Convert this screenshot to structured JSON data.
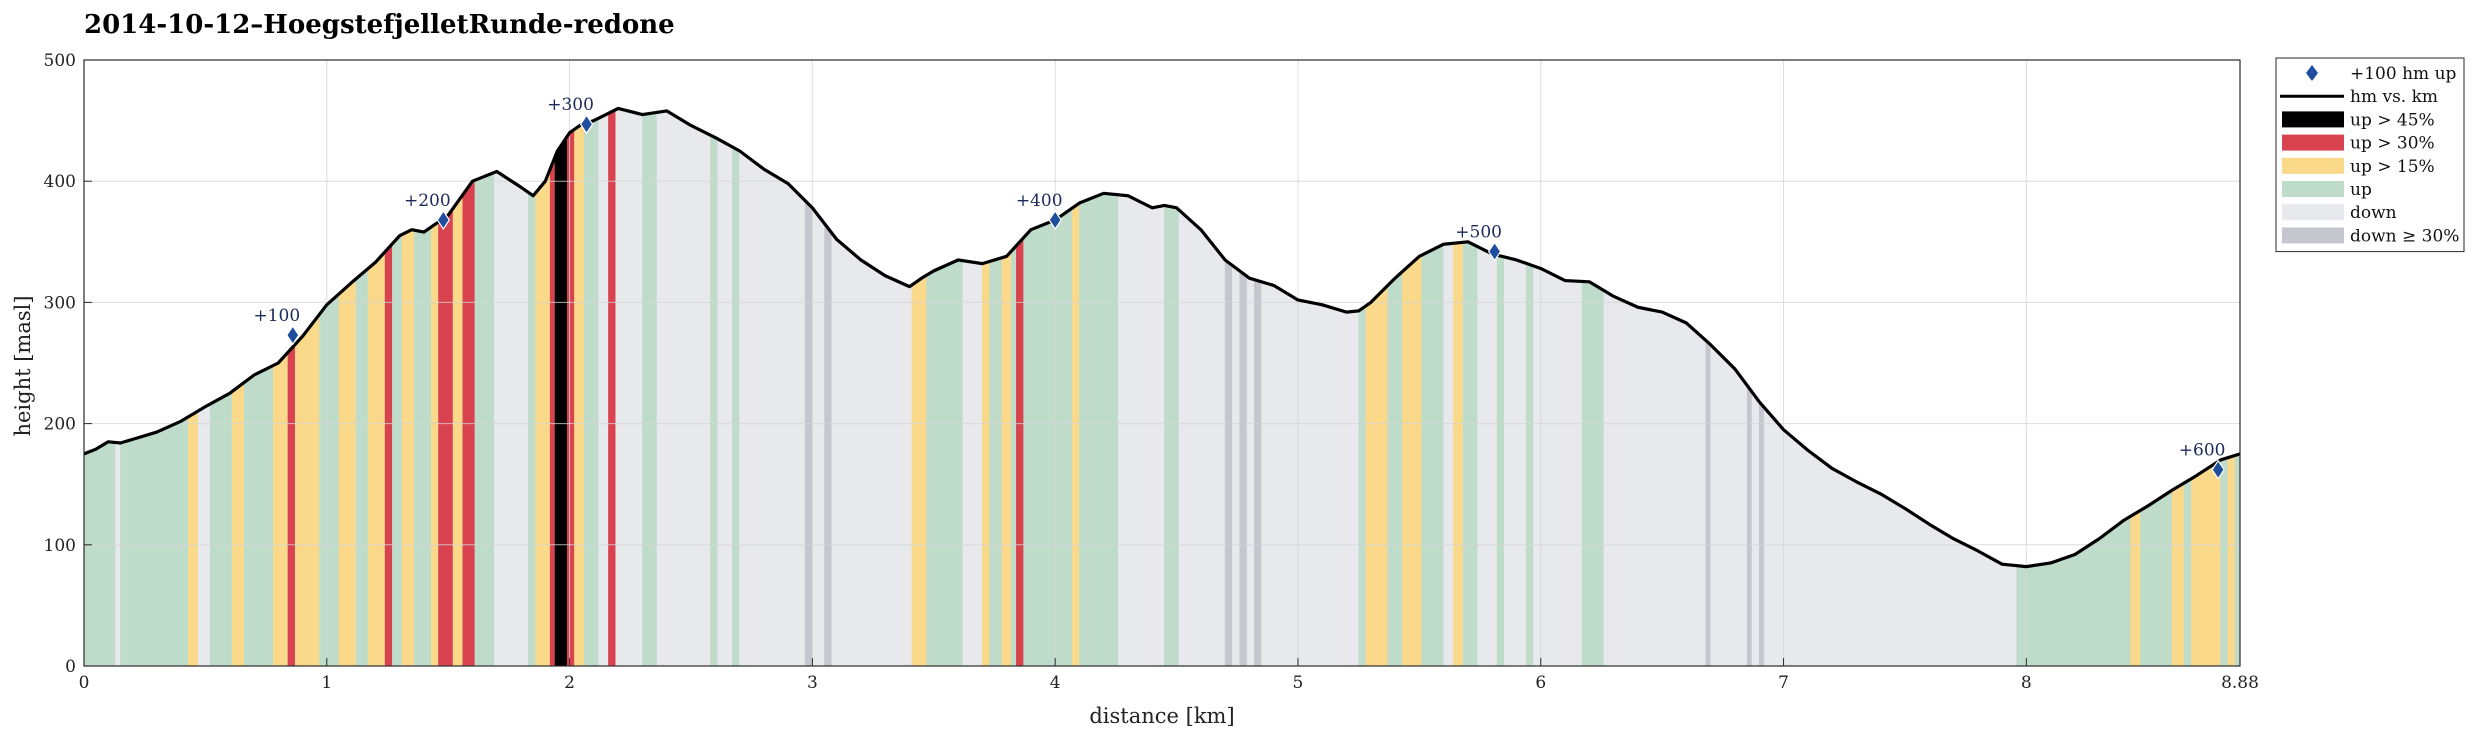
{
  "chart_data": {
    "type": "area",
    "title": "2014-10-12–HoegstefjelletRunde-redone",
    "xlabel": "distance [km]",
    "ylabel": "height [masl]",
    "xlim": [
      0,
      8.88
    ],
    "ylim": [
      0,
      500
    ],
    "grid": true,
    "legend_position": "outside-top-right",
    "x_ticks": [
      0,
      1,
      2,
      3,
      4,
      5,
      6,
      7,
      8,
      8.88
    ],
    "x_tick_labels": [
      "0",
      "1",
      "2",
      "3",
      "4",
      "5",
      "6",
      "7",
      "8",
      "8.88"
    ],
    "y_ticks": [
      0,
      100,
      200,
      300,
      400,
      500
    ],
    "y_tick_labels": [
      "0",
      "100",
      "200",
      "300",
      "400",
      "500"
    ],
    "profile": {
      "name": "hm vs. km",
      "color": "#000000",
      "x": [
        0.0,
        0.05,
        0.1,
        0.15,
        0.2,
        0.3,
        0.4,
        0.5,
        0.6,
        0.7,
        0.8,
        0.9,
        1.0,
        1.1,
        1.2,
        1.3,
        1.35,
        1.4,
        1.5,
        1.6,
        1.7,
        1.8,
        1.85,
        1.9,
        1.95,
        2.0,
        2.05,
        2.1,
        2.15,
        2.2,
        2.3,
        2.4,
        2.5,
        2.6,
        2.7,
        2.8,
        2.9,
        3.0,
        3.1,
        3.2,
        3.3,
        3.4,
        3.45,
        3.5,
        3.6,
        3.7,
        3.8,
        3.9,
        4.0,
        4.1,
        4.2,
        4.3,
        4.4,
        4.45,
        4.5,
        4.6,
        4.7,
        4.8,
        4.9,
        5.0,
        5.1,
        5.2,
        5.25,
        5.3,
        5.4,
        5.5,
        5.6,
        5.7,
        5.8,
        5.9,
        6.0,
        6.1,
        6.2,
        6.3,
        6.4,
        6.5,
        6.6,
        6.7,
        6.8,
        6.9,
        7.0,
        7.1,
        7.2,
        7.3,
        7.4,
        7.5,
        7.6,
        7.7,
        7.8,
        7.9,
        8.0,
        8.1,
        8.2,
        8.3,
        8.4,
        8.5,
        8.6,
        8.7,
        8.8,
        8.88
      ],
      "y": [
        175,
        179,
        185,
        184,
        187,
        193,
        202,
        214,
        225,
        240,
        250,
        272,
        298,
        316,
        333,
        355,
        360,
        358,
        372,
        400,
        408,
        395,
        388,
        400,
        425,
        440,
        447,
        450,
        455,
        460,
        455,
        458,
        446,
        436,
        425,
        410,
        398,
        378,
        352,
        335,
        322,
        313,
        320,
        326,
        335,
        332,
        338,
        360,
        368,
        382,
        390,
        388,
        378,
        380,
        378,
        360,
        335,
        320,
        314,
        302,
        298,
        292,
        293,
        300,
        320,
        338,
        348,
        350,
        340,
        335,
        328,
        318,
        317,
        305,
        296,
        292,
        283,
        265,
        245,
        218,
        195,
        178,
        163,
        152,
        142,
        130,
        117,
        105,
        95,
        84,
        82,
        85,
        92,
        105,
        120,
        132,
        145,
        157,
        170,
        175
      ]
    },
    "markers": {
      "name": "+100 hm up",
      "color": "#1f4e9e",
      "points": [
        {
          "x": 0.86,
          "y": 273,
          "label": "+100"
        },
        {
          "x": 1.48,
          "y": 368,
          "label": "+200"
        },
        {
          "x": 2.07,
          "y": 447,
          "label": "+300"
        },
        {
          "x": 4.0,
          "y": 368,
          "label": "+400"
        },
        {
          "x": 5.81,
          "y": 342,
          "label": "+500"
        },
        {
          "x": 8.79,
          "y": 162,
          "label": "+600"
        }
      ]
    },
    "categories": [
      {
        "key": "up45",
        "label": "up > 45%",
        "color": "#000000"
      },
      {
        "key": "up30",
        "label": "up > 30%",
        "color": "#d9434f"
      },
      {
        "key": "up15",
        "label": "up > 15%",
        "color": "#fad98a"
      },
      {
        "key": "up",
        "label": "up",
        "color": "#bfdccb"
      },
      {
        "key": "down",
        "label": "down",
        "color": "#e8e9ed"
      },
      {
        "key": "down30",
        "label": "down ≥ 30%",
        "color": "#c6c7ce"
      }
    ],
    "default_up_color": "#bfdccb",
    "default_down_color": "#e8e9ed",
    "segments": [
      {
        "x0": 0.0,
        "x1": 0.13,
        "c": "up"
      },
      {
        "x0": 0.13,
        "x1": 0.15,
        "c": "down"
      },
      {
        "x0": 0.15,
        "x1": 0.43,
        "c": "up"
      },
      {
        "x0": 0.43,
        "x1": 0.47,
        "c": "up15"
      },
      {
        "x0": 0.47,
        "x1": 0.52,
        "c": "down"
      },
      {
        "x0": 0.52,
        "x1": 0.61,
        "c": "up"
      },
      {
        "x0": 0.61,
        "x1": 0.66,
        "c": "up15"
      },
      {
        "x0": 0.66,
        "x1": 0.78,
        "c": "up"
      },
      {
        "x0": 0.78,
        "x1": 0.84,
        "c": "up15"
      },
      {
        "x0": 0.84,
        "x1": 0.87,
        "c": "up30"
      },
      {
        "x0": 0.87,
        "x1": 0.97,
        "c": "up15"
      },
      {
        "x0": 0.97,
        "x1": 1.05,
        "c": "up"
      },
      {
        "x0": 1.05,
        "x1": 1.12,
        "c": "up15"
      },
      {
        "x0": 1.12,
        "x1": 1.17,
        "c": "up"
      },
      {
        "x0": 1.17,
        "x1": 1.24,
        "c": "up15"
      },
      {
        "x0": 1.24,
        "x1": 1.27,
        "c": "up30"
      },
      {
        "x0": 1.27,
        "x1": 1.31,
        "c": "up"
      },
      {
        "x0": 1.31,
        "x1": 1.36,
        "c": "up15"
      },
      {
        "x0": 1.36,
        "x1": 1.43,
        "c": "up"
      },
      {
        "x0": 1.43,
        "x1": 1.46,
        "c": "up15"
      },
      {
        "x0": 1.46,
        "x1": 1.52,
        "c": "up30"
      },
      {
        "x0": 1.52,
        "x1": 1.56,
        "c": "up15"
      },
      {
        "x0": 1.56,
        "x1": 1.61,
        "c": "up30"
      },
      {
        "x0": 1.61,
        "x1": 1.69,
        "c": "up"
      },
      {
        "x0": 1.69,
        "x1": 1.83,
        "c": "down"
      },
      {
        "x0": 1.83,
        "x1": 1.86,
        "c": "up"
      },
      {
        "x0": 1.86,
        "x1": 1.92,
        "c": "up15"
      },
      {
        "x0": 1.92,
        "x1": 1.94,
        "c": "up30"
      },
      {
        "x0": 1.94,
        "x1": 1.99,
        "c": "up45"
      },
      {
        "x0": 1.99,
        "x1": 2.02,
        "c": "up30"
      },
      {
        "x0": 2.02,
        "x1": 2.06,
        "c": "up15"
      },
      {
        "x0": 2.06,
        "x1": 2.12,
        "c": "up"
      },
      {
        "x0": 2.12,
        "x1": 2.16,
        "c": "down"
      },
      {
        "x0": 2.16,
        "x1": 2.19,
        "c": "up30"
      },
      {
        "x0": 2.19,
        "x1": 2.3,
        "c": "down"
      },
      {
        "x0": 2.3,
        "x1": 2.36,
        "c": "up"
      },
      {
        "x0": 2.36,
        "x1": 2.58,
        "c": "down"
      },
      {
        "x0": 2.58,
        "x1": 2.61,
        "c": "up"
      },
      {
        "x0": 2.61,
        "x1": 2.67,
        "c": "down"
      },
      {
        "x0": 2.67,
        "x1": 2.7,
        "c": "up"
      },
      {
        "x0": 2.7,
        "x1": 2.97,
        "c": "down"
      },
      {
        "x0": 2.97,
        "x1": 3.0,
        "c": "down30"
      },
      {
        "x0": 3.0,
        "x1": 3.05,
        "c": "down"
      },
      {
        "x0": 3.05,
        "x1": 3.08,
        "c": "down30"
      },
      {
        "x0": 3.08,
        "x1": 3.41,
        "c": "down"
      },
      {
        "x0": 3.41,
        "x1": 3.47,
        "c": "up15"
      },
      {
        "x0": 3.47,
        "x1": 3.62,
        "c": "up"
      },
      {
        "x0": 3.62,
        "x1": 3.7,
        "c": "down"
      },
      {
        "x0": 3.7,
        "x1": 3.73,
        "c": "up15"
      },
      {
        "x0": 3.73,
        "x1": 3.78,
        "c": "up"
      },
      {
        "x0": 3.78,
        "x1": 3.82,
        "c": "up15"
      },
      {
        "x0": 3.82,
        "x1": 3.84,
        "c": "up"
      },
      {
        "x0": 3.84,
        "x1": 3.87,
        "c": "up30"
      },
      {
        "x0": 3.87,
        "x1": 4.07,
        "c": "up"
      },
      {
        "x0": 4.07,
        "x1": 4.1,
        "c": "up15"
      },
      {
        "x0": 4.1,
        "x1": 4.26,
        "c": "up"
      },
      {
        "x0": 4.26,
        "x1": 4.45,
        "c": "down"
      },
      {
        "x0": 4.45,
        "x1": 4.51,
        "c": "up"
      },
      {
        "x0": 4.51,
        "x1": 4.7,
        "c": "down"
      },
      {
        "x0": 4.7,
        "x1": 4.73,
        "c": "down30"
      },
      {
        "x0": 4.73,
        "x1": 4.76,
        "c": "down"
      },
      {
        "x0": 4.76,
        "x1": 4.79,
        "c": "down30"
      },
      {
        "x0": 4.79,
        "x1": 4.82,
        "c": "down"
      },
      {
        "x0": 4.82,
        "x1": 4.85,
        "c": "down30"
      },
      {
        "x0": 4.85,
        "x1": 5.25,
        "c": "down"
      },
      {
        "x0": 5.25,
        "x1": 5.28,
        "c": "up"
      },
      {
        "x0": 5.28,
        "x1": 5.37,
        "c": "up15"
      },
      {
        "x0": 5.37,
        "x1": 5.43,
        "c": "up"
      },
      {
        "x0": 5.43,
        "x1": 5.51,
        "c": "up15"
      },
      {
        "x0": 5.51,
        "x1": 5.6,
        "c": "up"
      },
      {
        "x0": 5.6,
        "x1": 5.64,
        "c": "down"
      },
      {
        "x0": 5.64,
        "x1": 5.68,
        "c": "up15"
      },
      {
        "x0": 5.68,
        "x1": 5.74,
        "c": "up"
      },
      {
        "x0": 5.74,
        "x1": 5.82,
        "c": "down"
      },
      {
        "x0": 5.82,
        "x1": 5.85,
        "c": "up"
      },
      {
        "x0": 5.85,
        "x1": 5.94,
        "c": "down"
      },
      {
        "x0": 5.94,
        "x1": 5.97,
        "c": "up"
      },
      {
        "x0": 5.97,
        "x1": 6.17,
        "c": "down"
      },
      {
        "x0": 6.17,
        "x1": 6.26,
        "c": "up"
      },
      {
        "x0": 6.26,
        "x1": 6.68,
        "c": "down"
      },
      {
        "x0": 6.68,
        "x1": 6.7,
        "c": "down30"
      },
      {
        "x0": 6.7,
        "x1": 6.85,
        "c": "down"
      },
      {
        "x0": 6.85,
        "x1": 6.87,
        "c": "down30"
      },
      {
        "x0": 6.87,
        "x1": 6.9,
        "c": "down"
      },
      {
        "x0": 6.9,
        "x1": 6.92,
        "c": "down30"
      },
      {
        "x0": 6.92,
        "x1": 7.96,
        "c": "down"
      },
      {
        "x0": 7.96,
        "x1": 8.43,
        "c": "up"
      },
      {
        "x0": 8.43,
        "x1": 8.47,
        "c": "up15"
      },
      {
        "x0": 8.47,
        "x1": 8.6,
        "c": "up"
      },
      {
        "x0": 8.6,
        "x1": 8.65,
        "c": "up15"
      },
      {
        "x0": 8.65,
        "x1": 8.68,
        "c": "up"
      },
      {
        "x0": 8.68,
        "x1": 8.8,
        "c": "up15"
      },
      {
        "x0": 8.8,
        "x1": 8.83,
        "c": "up"
      },
      {
        "x0": 8.83,
        "x1": 8.86,
        "c": "up15"
      },
      {
        "x0": 8.86,
        "x1": 8.88,
        "c": "up"
      }
    ]
  }
}
